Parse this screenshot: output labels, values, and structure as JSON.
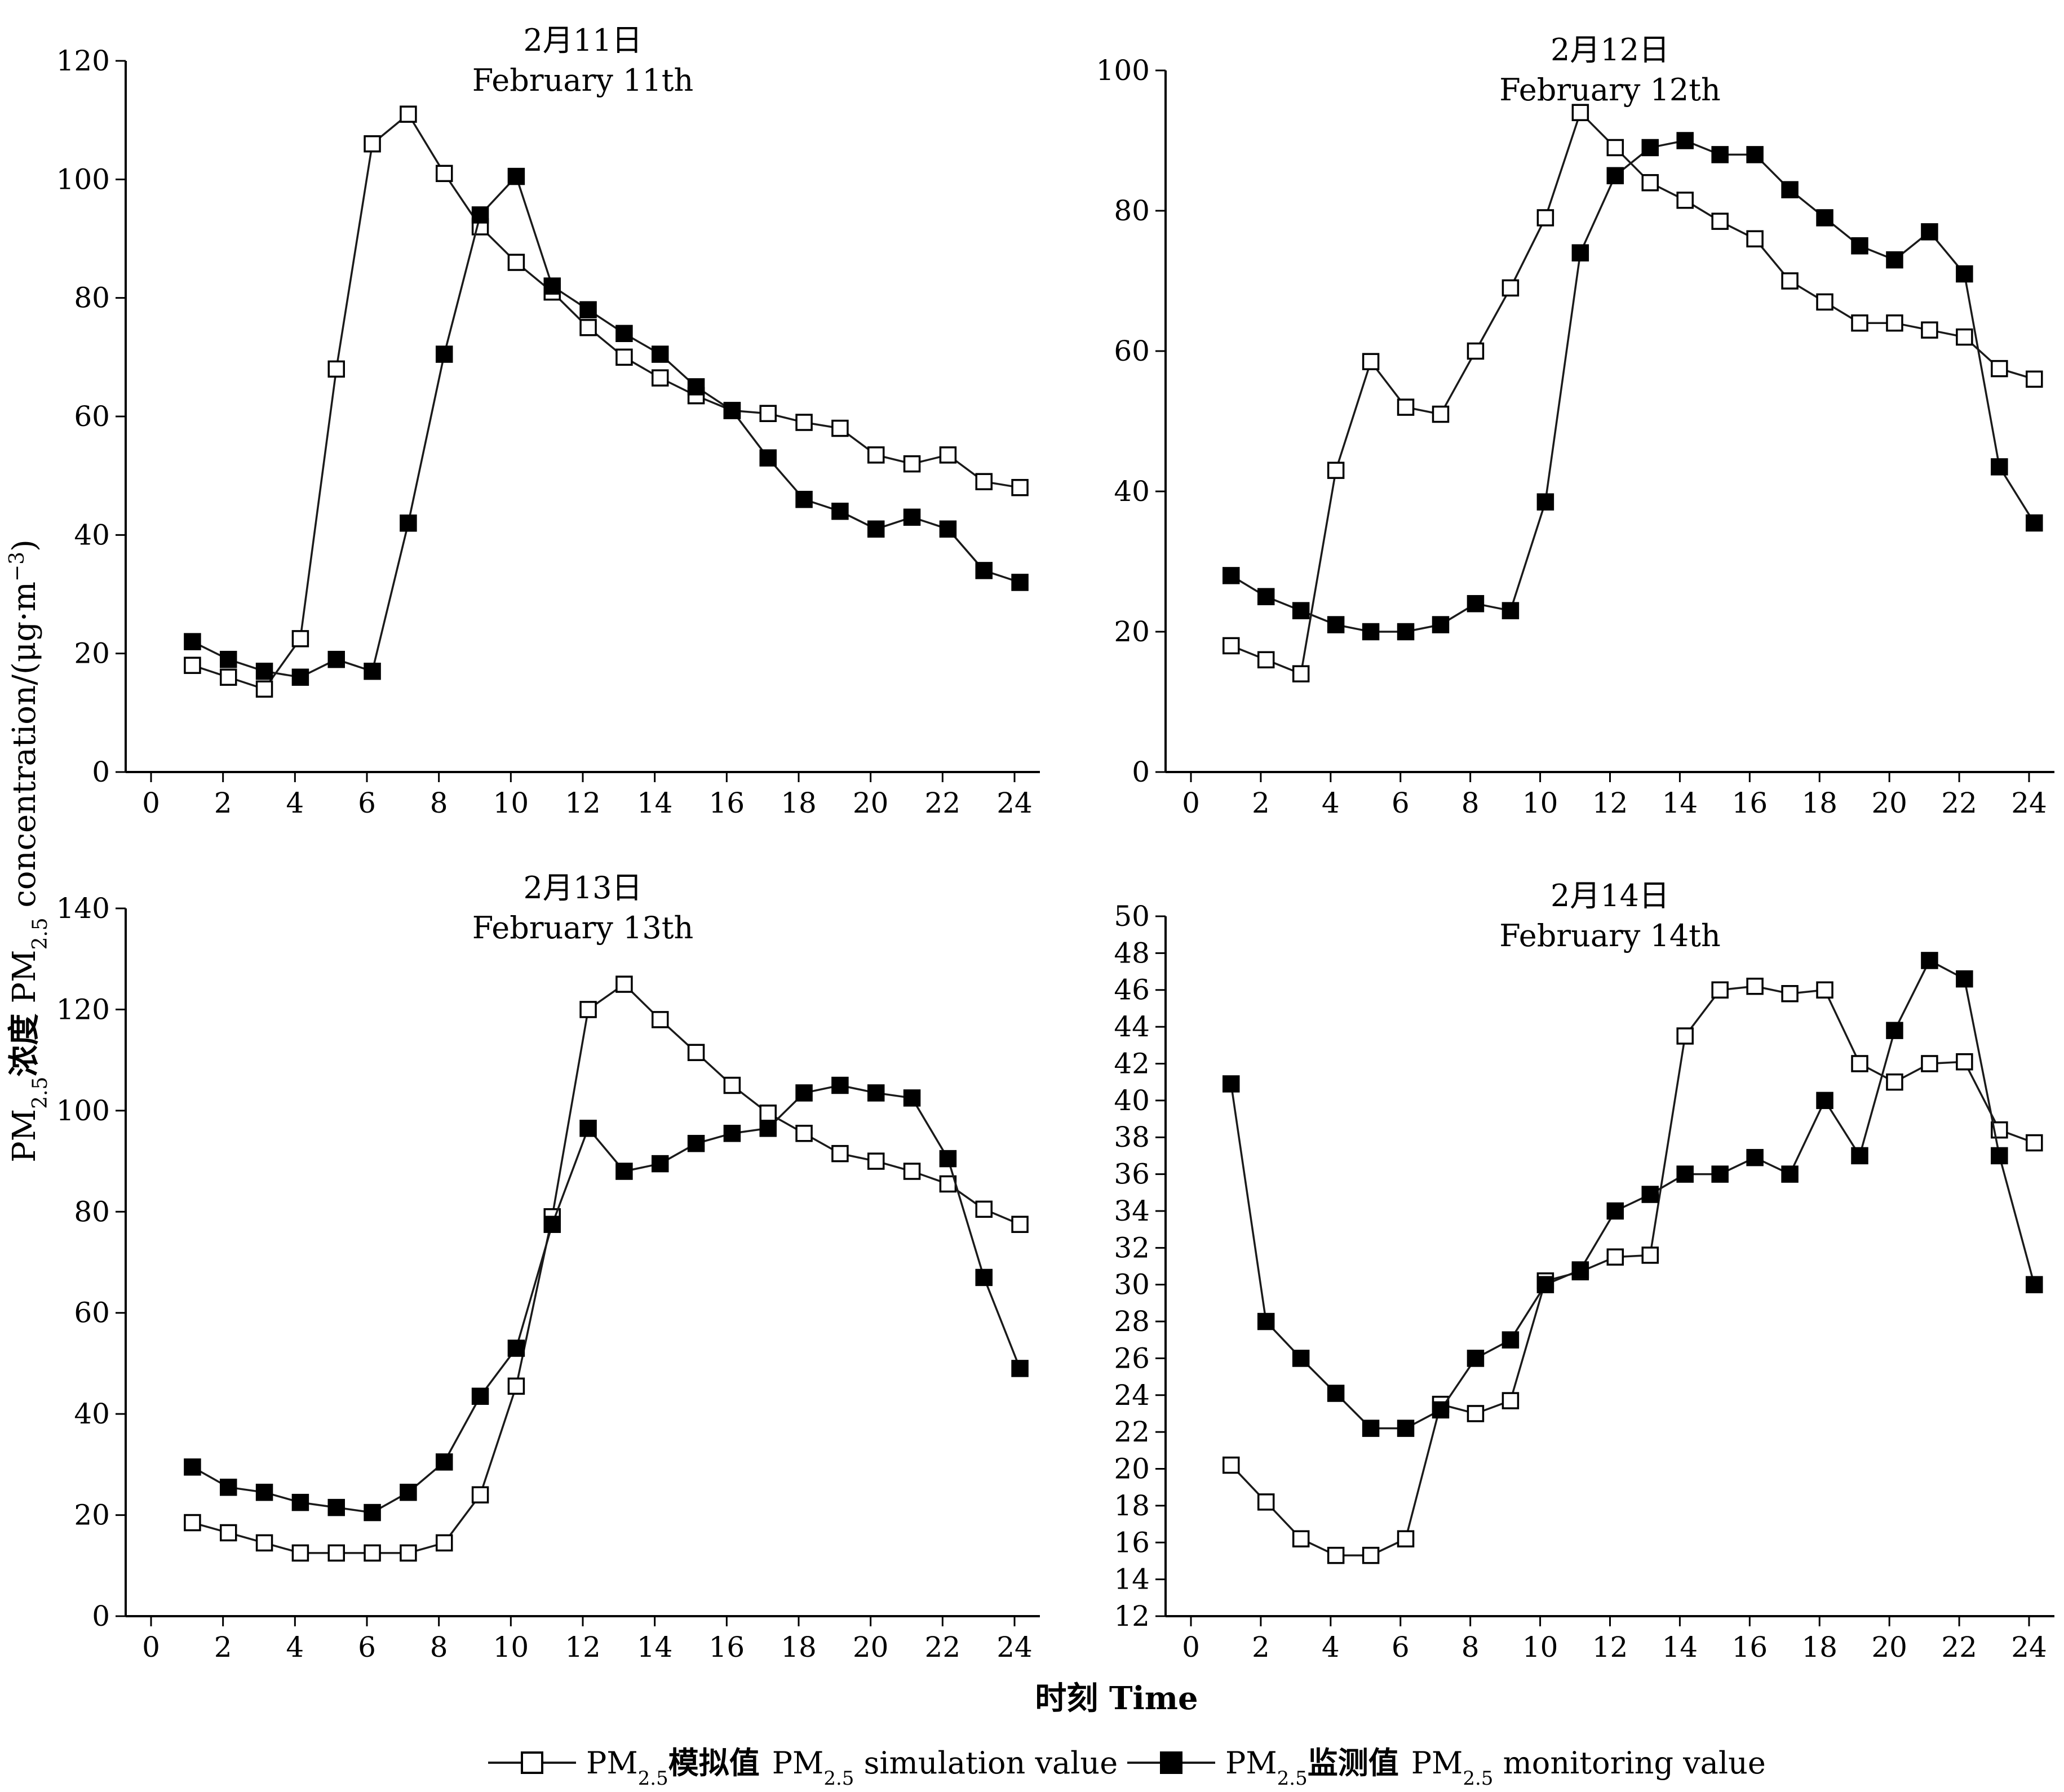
{
  "figure": {
    "y_axis_label": "PM2.5浓度 PM2.5 concentration/(μg·m⁻³)",
    "y_axis_label_parts": {
      "cn_prefix": "PM",
      "cn_sub": "2.5",
      "cn_word": "浓度",
      "en_prefix": "PM",
      "en_sub": "2.5",
      "en_rest": " concentration/(μg·m",
      "unit_exp": "−3",
      "unit_close": ")"
    },
    "x_axis_label": "时刻  Time",
    "legend": [
      {
        "key": "sim",
        "prefix": "PM",
        "sub": "2.5",
        "cn": "模拟值",
        "en_prefix": "PM",
        "en_sub": "2.5",
        "en_rest": " simulation value",
        "full": "PM2.5模拟值 PM2.5 simulation value"
      },
      {
        "key": "mon",
        "prefix": "PM",
        "sub": "2.5",
        "cn": "监测值",
        "en_prefix": "PM",
        "en_sub": "2.5",
        "en_rest": " monitoring value",
        "full": "PM2.5监测值 PM2.5 monitoring value"
      }
    ],
    "colors": {
      "axis": "#000000",
      "line": "#1a1a1a",
      "sim_fill": "#ffffff",
      "mon_fill": "#000000"
    }
  },
  "chart_data": [
    {
      "type": "line",
      "title_cn": "2月11日",
      "title_en": "February 11th",
      "xlim": [
        0,
        24
      ],
      "x_ticks": [
        0,
        2,
        4,
        6,
        8,
        10,
        12,
        14,
        16,
        18,
        20,
        22,
        24
      ],
      "ylim": [
        0,
        120
      ],
      "y_ticks": [
        0,
        20,
        40,
        60,
        80,
        100,
        120
      ],
      "x": [
        1,
        2,
        3,
        4,
        5,
        6,
        7,
        8,
        9,
        10,
        11,
        12,
        13,
        14,
        15,
        16,
        17,
        18,
        19,
        20,
        21,
        22,
        23,
        24
      ],
      "series": [
        {
          "name": "PM2.5模拟值 PM2.5 simulation value",
          "marker": "open-square",
          "values": [
            18,
            16,
            14,
            22.5,
            68,
            106,
            111,
            101,
            92,
            86,
            81,
            75,
            70,
            66.5,
            63.5,
            61,
            60.5,
            59,
            58,
            53.5,
            52,
            53.5,
            49,
            48
          ]
        },
        {
          "name": "PM2.5监测值 PM2.5 monitoring value",
          "marker": "filled-square",
          "values": [
            22,
            19,
            17,
            16,
            19,
            17,
            42,
            70.5,
            94,
            100.5,
            82,
            78,
            74,
            70.5,
            65,
            61,
            53,
            46,
            44,
            41,
            43,
            41,
            34,
            32
          ]
        }
      ]
    },
    {
      "type": "line",
      "title_cn": "2月12日",
      "title_en": "February 12th",
      "xlim": [
        0,
        24
      ],
      "x_ticks": [
        0,
        2,
        4,
        6,
        8,
        10,
        12,
        14,
        16,
        18,
        20,
        22,
        24
      ],
      "ylim": [
        0,
        100
      ],
      "y_ticks": [
        0,
        20,
        40,
        60,
        80,
        100
      ],
      "x": [
        1,
        2,
        3,
        4,
        5,
        6,
        7,
        8,
        9,
        10,
        11,
        12,
        13,
        14,
        15,
        16,
        17,
        18,
        19,
        20,
        21,
        22,
        23,
        24
      ],
      "series": [
        {
          "name": "PM2.5模拟值 PM2.5 simulation value",
          "marker": "open-square",
          "values": [
            18,
            16,
            14,
            43,
            58.5,
            52,
            51,
            60,
            69,
            79,
            94,
            89,
            84,
            81.5,
            78.5,
            76,
            70,
            67,
            64,
            64,
            63,
            62,
            57.5,
            56
          ]
        },
        {
          "name": "PM2.5监测值 PM2.5 monitoring value",
          "marker": "filled-square",
          "values": [
            28,
            25,
            23,
            21,
            20,
            20,
            21,
            24,
            23,
            38.5,
            74,
            85,
            89,
            90,
            88,
            88,
            83,
            79,
            75,
            73,
            77,
            71,
            43.5,
            35.5
          ]
        }
      ]
    },
    {
      "type": "line",
      "title_cn": "2月13日",
      "title_en": "February 13th",
      "xlim": [
        0,
        24
      ],
      "x_ticks": [
        0,
        2,
        4,
        6,
        8,
        10,
        12,
        14,
        16,
        18,
        20,
        22,
        24
      ],
      "ylim": [
        0,
        140
      ],
      "y_ticks": [
        0,
        20,
        40,
        60,
        80,
        100,
        120,
        140
      ],
      "x": [
        1,
        2,
        3,
        4,
        5,
        6,
        7,
        8,
        9,
        10,
        11,
        12,
        13,
        14,
        15,
        16,
        17,
        18,
        19,
        20,
        21,
        22,
        23,
        24
      ],
      "series": [
        {
          "name": "PM2.5模拟值 PM2.5 simulation value",
          "marker": "open-square",
          "values": [
            18.5,
            16.5,
            14.5,
            12.5,
            12.5,
            12.5,
            12.5,
            14.5,
            24,
            45.5,
            79,
            120,
            125,
            118,
            111.5,
            105,
            99.5,
            95.5,
            91.5,
            90,
            88,
            85.5,
            80.5,
            77.5
          ]
        },
        {
          "name": "PM2.5监测值 PM2.5 monitoring value",
          "marker": "filled-square",
          "values": [
            29.5,
            25.5,
            24.5,
            22.5,
            21.5,
            20.5,
            24.5,
            30.5,
            43.5,
            53,
            77.5,
            96.5,
            88,
            89.5,
            93.5,
            95.5,
            96.5,
            103.5,
            105,
            103.5,
            102.5,
            90.5,
            67,
            49
          ]
        }
      ]
    },
    {
      "type": "line",
      "title_cn": "2月14日",
      "title_en": "February 14th",
      "xlim": [
        0,
        24
      ],
      "x_ticks": [
        0,
        2,
        4,
        6,
        8,
        10,
        12,
        14,
        16,
        18,
        20,
        22,
        24
      ],
      "ylim": [
        12,
        50
      ],
      "y_ticks": [
        12,
        14,
        16,
        18,
        20,
        22,
        24,
        26,
        28,
        30,
        32,
        34,
        36,
        38,
        40,
        42,
        44,
        46,
        48,
        50
      ],
      "x": [
        1,
        2,
        3,
        4,
        5,
        6,
        7,
        8,
        9,
        10,
        11,
        12,
        13,
        14,
        15,
        16,
        17,
        18,
        19,
        20,
        21,
        22,
        23,
        24
      ],
      "series": [
        {
          "name": "PM2.5模拟值 PM2.5 simulation value",
          "marker": "open-square",
          "values": [
            20.2,
            18.2,
            16.2,
            15.3,
            15.3,
            16.2,
            23.5,
            23,
            23.7,
            30.2,
            30.7,
            31.5,
            31.6,
            43.5,
            46,
            46.2,
            45.8,
            46,
            42,
            41,
            42,
            42.1,
            38.4,
            37.7
          ]
        },
        {
          "name": "PM2.5监测值 PM2.5 monitoring value",
          "marker": "filled-square",
          "values": [
            40.9,
            28,
            26,
            24.1,
            22.2,
            22.2,
            23.2,
            26,
            27,
            30,
            30.8,
            34,
            34.9,
            36,
            36,
            36.9,
            36,
            40,
            37,
            43.8,
            47.6,
            46.6,
            37,
            30
          ]
        }
      ]
    }
  ]
}
